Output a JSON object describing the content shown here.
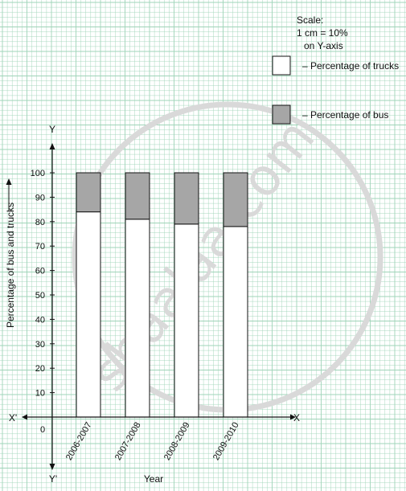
{
  "chart_data": {
    "type": "bar",
    "stacked": true,
    "scale_text": [
      "Scale:",
      "1 cm = 10%",
      "on Y-axis"
    ],
    "categories": [
      "2006-2007",
      "2007-2008",
      "2008-2009",
      "2009-2010"
    ],
    "series": [
      {
        "name": "Percentage of trucks",
        "legend_label": "– Percentage of trucks",
        "color": "#ffffff",
        "values": [
          84,
          81,
          79,
          78
        ]
      },
      {
        "name": "Percentage of bus",
        "legend_label": "– Percentage of bus",
        "color": "#a6a6a6",
        "values": [
          16,
          19,
          21,
          22
        ]
      }
    ],
    "ylabel": "Percentage of bus and trucks",
    "xlabel": "Year",
    "yticks": [
      0,
      10,
      20,
      30,
      40,
      50,
      60,
      70,
      80,
      90,
      100
    ],
    "ylim": [
      0,
      100
    ],
    "axis_labels": {
      "x_pos": "X",
      "x_neg": "X'",
      "y_pos": "Y",
      "y_neg": "Y'"
    },
    "grid": true,
    "grid_color": "#9fd4b8",
    "legend_position": "top-right"
  },
  "watermark": {
    "text": "shaalaa.com",
    "color": "#d9d9d9"
  }
}
